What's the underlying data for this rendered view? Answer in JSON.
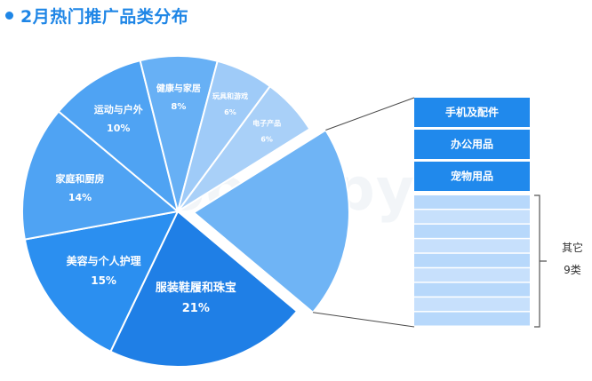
{
  "title": "2月热门推广品类分布",
  "watermark": "GoodSpy",
  "chart_data": {
    "type": "pie",
    "title": "2月热门推广品类分布",
    "slices": [
      {
        "label": "服装鞋履和珠宝",
        "value": 21,
        "display": "21%",
        "color": "#1f7fe6"
      },
      {
        "label": "美容与个人护理",
        "value": 15,
        "display": "15%",
        "color": "#2b8ff0"
      },
      {
        "label": "家庭和厨房",
        "value": 14,
        "display": "14%",
        "color": "#4fa3f3"
      },
      {
        "label": "运动与户外",
        "value": 10,
        "display": "10%",
        "color": "#4fa3f3"
      },
      {
        "label": "健康与家居",
        "value": 8,
        "display": "8%",
        "color": "#67b0f5"
      },
      {
        "label": "玩具和游戏",
        "value": 6,
        "display": "6%",
        "color": "#9fcbf8"
      },
      {
        "label": "电子产品",
        "value": 6,
        "display": "6%",
        "color": "#a9d0f8"
      },
      {
        "label": "其他",
        "value": 20,
        "display": "",
        "color": "#6fb4f5",
        "exploded": true
      }
    ],
    "breakdown": {
      "labeled": [
        "手机及配件",
        "办公用品",
        "宠物用品"
      ],
      "labeled_color": "#2089ec",
      "other_count": 9,
      "other_color": "#b7d8fb",
      "bracket_label_line1": "其它",
      "bracket_label_line2": "9类"
    }
  }
}
